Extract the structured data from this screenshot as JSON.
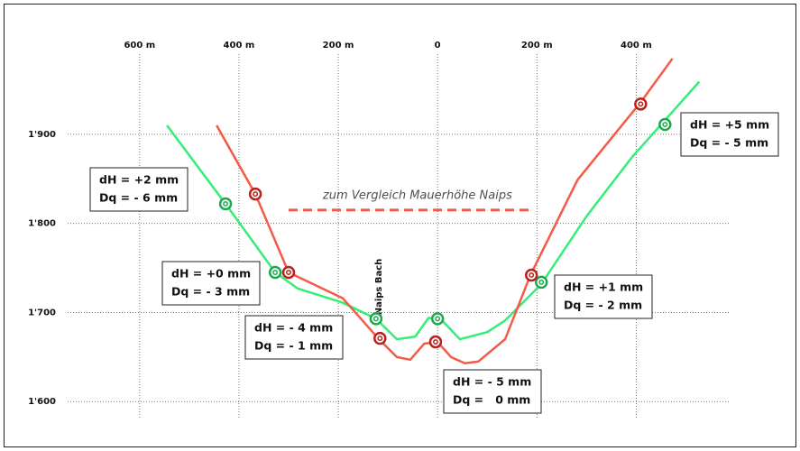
{
  "chart_data": {
    "type": "line",
    "xlim": [
      -745,
      590
    ],
    "ylim": [
      1580,
      1990
    ],
    "xticks": [
      {
        "value": -600,
        "label": "600 m"
      },
      {
        "value": -400,
        "label": "400 m"
      },
      {
        "value": -200,
        "label": "200 m"
      },
      0,
      {
        "value": 200,
        "label": "200 m"
      },
      {
        "value": 400,
        "label": "400 m"
      }
    ],
    "yticks": [
      {
        "value": 1600,
        "label": "1'600"
      },
      {
        "value": 1700,
        "label": "1'700"
      },
      {
        "value": 1800,
        "label": "1'800"
      },
      {
        "value": 1900,
        "label": "1'900"
      }
    ],
    "grid": true,
    "series": [
      {
        "color": "#33ee77",
        "x": [
          -545,
          -427,
          -327,
          -282,
          -191,
          -124,
          -82,
          -45,
          -18,
          9,
          45,
          100,
          136,
          209,
          300,
          391,
          527
        ],
        "values": [
          1910,
          1822,
          1745,
          1727,
          1711,
          1693,
          1670,
          1673,
          1694,
          1691,
          1670,
          1678,
          1691,
          1732,
          1808,
          1874,
          1959
        ]
      },
      {
        "color": "#f45a46",
        "x": [
          -445,
          -367,
          -300,
          -191,
          -118,
          -82,
          -55,
          -27,
          0,
          27,
          55,
          82,
          136,
          187,
          282,
          409,
          473
        ],
        "values": [
          1910,
          1833,
          1745,
          1716,
          1670,
          1650,
          1647,
          1665,
          1667,
          1650,
          1643,
          1645,
          1670,
          1742,
          1849,
          1936,
          1985
        ]
      }
    ],
    "points": [
      {
        "color": "#1fa84f",
        "x": [
          -427,
          -327,
          -124,
          0,
          209,
          458
        ],
        "values": [
          1822,
          1745,
          1693,
          1693,
          1734,
          1911
        ]
      },
      {
        "color": "#b8221a",
        "x": [
          -367,
          -300,
          -116,
          -4,
          189,
          409
        ],
        "values": [
          1833,
          1745,
          1671,
          1667,
          1742,
          1934
        ]
      }
    ],
    "reference": {
      "label": "zum Vergleich Mauerhöhe Naips",
      "value": 1815,
      "x": [
        -300,
        190
      ],
      "color": "#f45a46"
    },
    "stream_label": "Naips Bach",
    "annotations": [
      [
        "dH = +2 mm",
        "Dq = - 6 mm"
      ],
      [
        "dH = +0 mm",
        "Dq = - 3 mm"
      ],
      [
        "dH = - 4 mm",
        "Dq = - 1 mm"
      ],
      [
        "dH = - 5 mm",
        "Dq =   0 mm"
      ],
      [
        "dH = +1 mm",
        "Dq = - 2 mm"
      ],
      [
        "dH = +5 mm",
        "Dq = - 5 mm"
      ]
    ]
  }
}
